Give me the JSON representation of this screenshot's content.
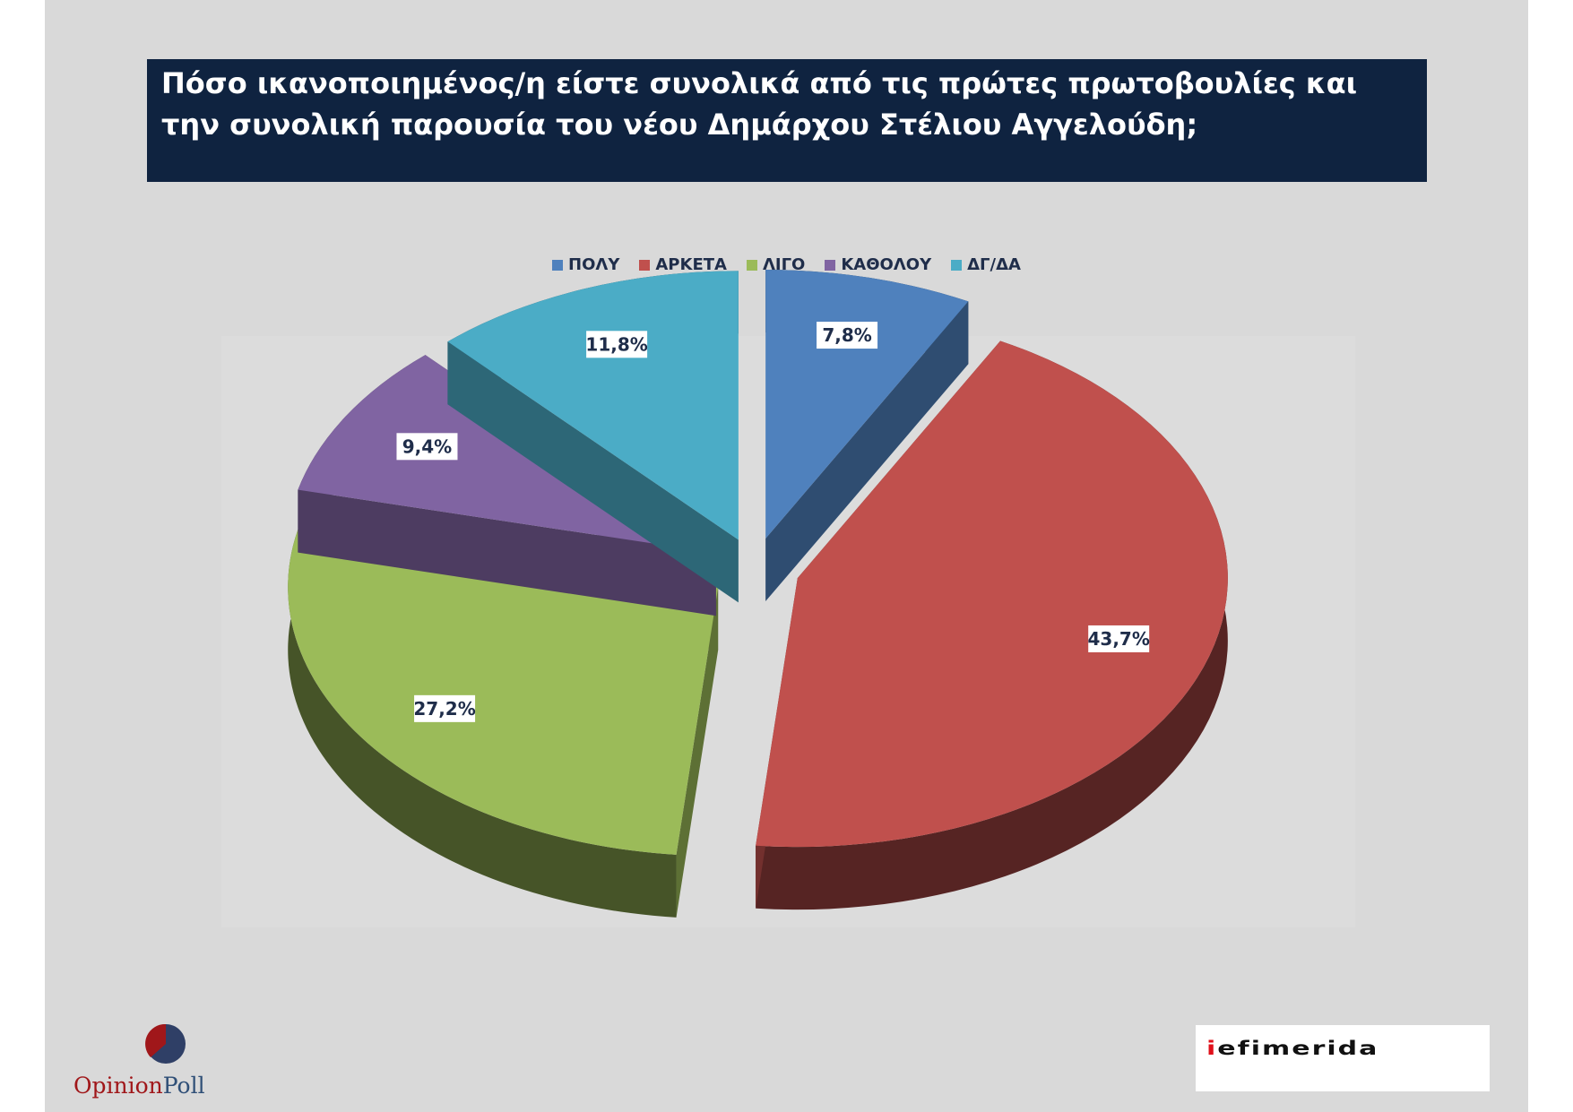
{
  "title": "Πόσο ικανοποιημένος/η είστε συνολικά από τις πρώτες πρωτοβουλίες και την συνολική παρουσία του νέου Δημάρχου Στέλιου Αγγελούδη;",
  "colors": {
    "slide_bg": "#d9d9d9",
    "title_bg": "#0f2340",
    "legend_text": "#1f2d4a"
  },
  "chart_data": {
    "type": "pie",
    "title": "Πόσο ικανοποιημένος/η είστε συνολικά από τις πρώτες πρωτοβουλίες και την συνολική παρουσία του νέου Δημάρχου Στέλιου Αγγελούδη;",
    "legend_position": "top",
    "exploded": true,
    "three_d": true,
    "slices": [
      {
        "label": "ΠΟΛΥ",
        "value": 7.8,
        "value_label": "7,8%",
        "color": "#4f81bd"
      },
      {
        "label": "ΑΡΚΕΤΑ",
        "value": 43.7,
        "value_label": "43,7%",
        "color": "#c0504d"
      },
      {
        "label": "ΛΙΓΟ",
        "value": 27.2,
        "value_label": "27,2%",
        "color": "#9bbb59"
      },
      {
        "label": "ΚΑΘΟΛΟΥ",
        "value": 9.4,
        "value_label": "9,4%",
        "color": "#8064a2"
      },
      {
        "label": "ΔΓ/ΔΑ",
        "value": 11.8,
        "value_label": "11,8%",
        "color": "#4bacc6"
      }
    ]
  },
  "logos": {
    "opinion_poll": {
      "part1": "Opinion",
      "part2": "Poll"
    },
    "iefimerida": {
      "first": "i",
      "rest": "efimerida"
    }
  }
}
